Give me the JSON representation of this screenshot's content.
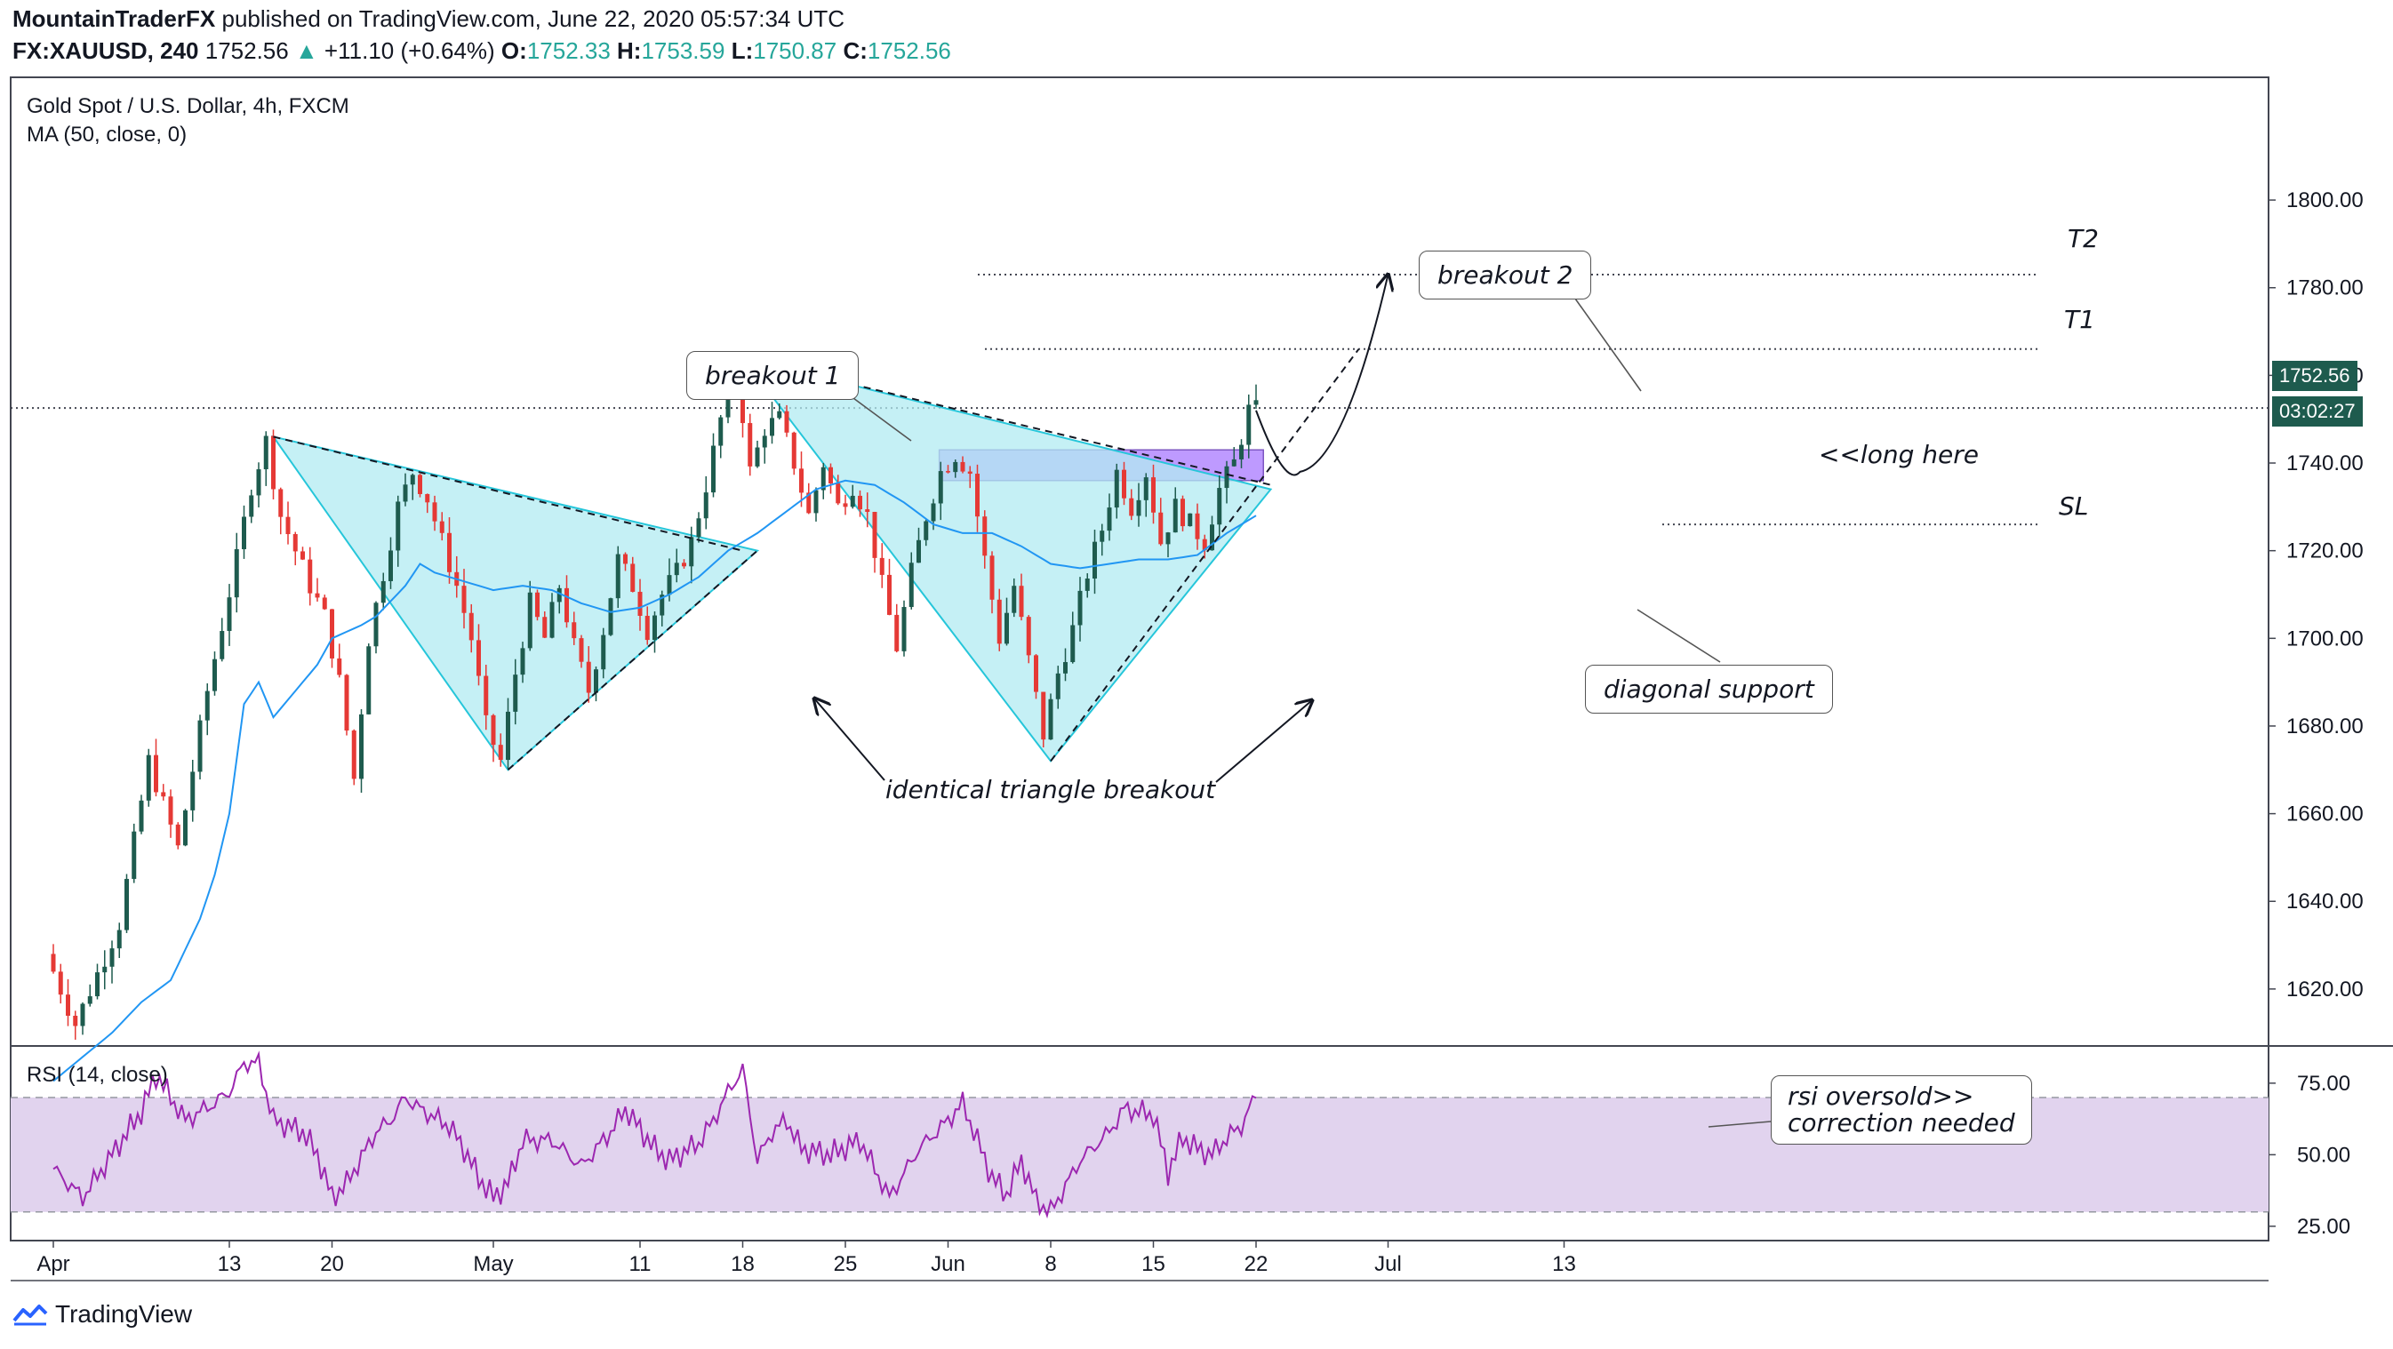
{
  "header": {
    "publisher": "MountainTraderFX",
    "published_text": "published on TradingView.com, June 22, 2020 05:57:34 UTC",
    "symbol": "FX:XAUUSD, 240",
    "last": "1752.56",
    "change": "+11.10 (+0.64%)",
    "o_label": "O:",
    "o_value": "1752.33",
    "h_label": "H:",
    "h_value": "1753.59",
    "l_label": "L:",
    "l_value": "1750.87",
    "c_label": "C:",
    "c_value": "1752.56"
  },
  "legend": {
    "instrument": "Gold Spot / U.S. Dollar, 4h, FXCM",
    "ma": "MA (50, close, 0)",
    "rsi": "RSI (14, close)"
  },
  "price_tag": "1752.56",
  "time_tag": "03:02:27",
  "brand": "TradingView",
  "annotations": {
    "breakout1": "breakout 1",
    "breakout2": "breakout 2",
    "long_here": "<<long here",
    "t1": "T1",
    "t2": "T2",
    "sl": "SL",
    "diagonal": "diagonal support",
    "identical": "identical triangle breakout",
    "rsi_note_1": "rsi oversold>>",
    "rsi_note_2": "correction  needed"
  },
  "colors": {
    "bull": "#1e5b4e",
    "bear": "#e53935",
    "ma": "#2196f3",
    "triangle_fill": "#b2ebf2",
    "triangle_edge": "#26c6da",
    "zone_fill": "#b388ff",
    "rsi_line": "#9c27b0",
    "rsi_band": "#e1d3ee"
  },
  "chart_data": {
    "type": "candlestick",
    "price_axis": {
      "ticks": [
        "1800.00",
        "1780.00",
        "1760.00",
        "1740.00",
        "1720.00",
        "1700.00",
        "1680.00",
        "1660.00",
        "1640.00",
        "1620.00"
      ],
      "range": [
        1607,
        1828
      ]
    },
    "rsi_axis": {
      "ticks": [
        "75.00",
        "50.00",
        "25.00"
      ],
      "range": [
        20,
        88
      ],
      "band": [
        30,
        70
      ]
    },
    "time_axis": {
      "labels": [
        "Apr",
        "13",
        "20",
        "May",
        "11",
        "18",
        "25",
        "Jun",
        "8",
        "15",
        "22",
        "Jul",
        "13"
      ],
      "label_days": [
        0,
        12,
        19,
        30,
        40,
        47,
        54,
        61,
        68,
        75,
        82,
        91,
        103
      ]
    },
    "levels": {
      "T2": 1783,
      "T1": 1766,
      "current": 1752.56,
      "SL": 1726
    },
    "long_zone": [
      1736,
      1743
    ],
    "price_path": [
      [
        0,
        1628
      ],
      [
        2,
        1612
      ],
      [
        5,
        1635
      ],
      [
        7,
        1672
      ],
      [
        9,
        1652
      ],
      [
        11,
        1688
      ],
      [
        13,
        1718
      ],
      [
        14,
        1735
      ],
      [
        15,
        1745
      ],
      [
        16,
        1728
      ],
      [
        17,
        1720
      ],
      [
        18,
        1712
      ],
      [
        19,
        1705
      ],
      [
        20,
        1690
      ],
      [
        21,
        1668
      ],
      [
        22,
        1700
      ],
      [
        23,
        1715
      ],
      [
        24,
        1730
      ],
      [
        25,
        1738
      ],
      [
        26,
        1732
      ],
      [
        27,
        1722
      ],
      [
        28,
        1712
      ],
      [
        29,
        1700
      ],
      [
        30,
        1680
      ],
      [
        31,
        1672
      ],
      [
        32,
        1692
      ],
      [
        33,
        1708
      ],
      [
        34,
        1700
      ],
      [
        35,
        1712
      ],
      [
        36,
        1698
      ],
      [
        37,
        1688
      ],
      [
        38,
        1702
      ],
      [
        39,
        1718
      ],
      [
        40,
        1712
      ],
      [
        41,
        1702
      ],
      [
        42,
        1710
      ],
      [
        43,
        1715
      ],
      [
        44,
        1722
      ],
      [
        45,
        1735
      ],
      [
        46,
        1750
      ],
      [
        47,
        1764
      ],
      [
        48,
        1738
      ],
      [
        49,
        1748
      ],
      [
        50,
        1750
      ],
      [
        51,
        1740
      ],
      [
        52,
        1728
      ],
      [
        53,
        1740
      ],
      [
        54,
        1730
      ],
      [
        55,
        1735
      ],
      [
        56,
        1728
      ],
      [
        57,
        1712
      ],
      [
        58,
        1698
      ],
      [
        59,
        1715
      ],
      [
        60,
        1728
      ],
      [
        61,
        1738
      ],
      [
        62,
        1742
      ],
      [
        63,
        1738
      ],
      [
        64,
        1718
      ],
      [
        65,
        1700
      ],
      [
        66,
        1712
      ],
      [
        67,
        1695
      ],
      [
        68,
        1678
      ],
      [
        69,
        1692
      ],
      [
        70,
        1702
      ],
      [
        71,
        1715
      ],
      [
        72,
        1725
      ],
      [
        73,
        1738
      ],
      [
        74,
        1730
      ],
      [
        75,
        1738
      ],
      [
        76,
        1722
      ],
      [
        77,
        1730
      ],
      [
        78,
        1726
      ],
      [
        79,
        1722
      ],
      [
        80,
        1734
      ],
      [
        81,
        1740
      ],
      [
        82,
        1752
      ]
    ],
    "ma_path": [
      [
        0,
        1599
      ],
      [
        4,
        1610
      ],
      [
        6,
        1617
      ],
      [
        8,
        1622
      ],
      [
        10,
        1636
      ],
      [
        11,
        1646
      ],
      [
        12,
        1660
      ],
      [
        13,
        1685
      ],
      [
        14,
        1690
      ],
      [
        15,
        1682
      ],
      [
        16,
        1686
      ],
      [
        17,
        1690
      ],
      [
        18,
        1694
      ],
      [
        19,
        1700
      ],
      [
        21,
        1703
      ],
      [
        22,
        1705
      ],
      [
        24,
        1712
      ],
      [
        25,
        1717
      ],
      [
        26,
        1715
      ],
      [
        28,
        1713
      ],
      [
        30,
        1711
      ],
      [
        32,
        1712
      ],
      [
        34,
        1711
      ],
      [
        36,
        1708
      ],
      [
        38,
        1706
      ],
      [
        40,
        1707
      ],
      [
        42,
        1710
      ],
      [
        44,
        1714
      ],
      [
        46,
        1720
      ],
      [
        48,
        1724
      ],
      [
        50,
        1729
      ],
      [
        52,
        1734
      ],
      [
        54,
        1736
      ],
      [
        56,
        1735
      ],
      [
        58,
        1731
      ],
      [
        60,
        1726
      ],
      [
        62,
        1724
      ],
      [
        64,
        1724
      ],
      [
        66,
        1721
      ],
      [
        68,
        1717
      ],
      [
        70,
        1716
      ],
      [
        72,
        1717
      ],
      [
        74,
        1718
      ],
      [
        76,
        1718
      ],
      [
        78,
        1719
      ],
      [
        80,
        1724
      ],
      [
        82,
        1728
      ]
    ],
    "rsi_path": [
      [
        0,
        45
      ],
      [
        2,
        35
      ],
      [
        4,
        50
      ],
      [
        6,
        65
      ],
      [
        7,
        78
      ],
      [
        9,
        62
      ],
      [
        11,
        68
      ],
      [
        12,
        72
      ],
      [
        13,
        82
      ],
      [
        14,
        82
      ],
      [
        15,
        62
      ],
      [
        17,
        58
      ],
      [
        18,
        50
      ],
      [
        19,
        35
      ],
      [
        20,
        40
      ],
      [
        22,
        58
      ],
      [
        23,
        62
      ],
      [
        24,
        70
      ],
      [
        25,
        66
      ],
      [
        27,
        60
      ],
      [
        28,
        52
      ],
      [
        29,
        42
      ],
      [
        30,
        35
      ],
      [
        31,
        40
      ],
      [
        32,
        55
      ],
      [
        34,
        55
      ],
      [
        36,
        46
      ],
      [
        38,
        58
      ],
      [
        39,
        66
      ],
      [
        41,
        52
      ],
      [
        42,
        48
      ],
      [
        44,
        54
      ],
      [
        45,
        62
      ],
      [
        46,
        72
      ],
      [
        47,
        80
      ],
      [
        48,
        48
      ],
      [
        49,
        58
      ],
      [
        50,
        62
      ],
      [
        51,
        52
      ],
      [
        53,
        50
      ],
      [
        55,
        55
      ],
      [
        56,
        45
      ],
      [
        57,
        35
      ],
      [
        59,
        52
      ],
      [
        61,
        62
      ],
      [
        62,
        68
      ],
      [
        63,
        55
      ],
      [
        64,
        42
      ],
      [
        65,
        36
      ],
      [
        66,
        48
      ],
      [
        67,
        34
      ],
      [
        68,
        30
      ],
      [
        70,
        48
      ],
      [
        72,
        58
      ],
      [
        73,
        66
      ],
      [
        75,
        64
      ],
      [
        76,
        44
      ],
      [
        77,
        56
      ],
      [
        78,
        52
      ],
      [
        79,
        50
      ],
      [
        80,
        56
      ],
      [
        81,
        60
      ],
      [
        82,
        71
      ]
    ],
    "triangles": [
      [
        [
          15,
          1746
        ],
        [
          31,
          1670
        ],
        [
          48,
          1720
        ]
      ],
      [
        [
          47,
          1764
        ],
        [
          68,
          1672
        ],
        [
          83,
          1734
        ]
      ]
    ],
    "trendlines_dashed": [
      [
        [
          15,
          1746
        ],
        [
          47,
          1720
        ]
      ],
      [
        [
          31,
          1670
        ],
        [
          48,
          1720
        ]
      ],
      [
        [
          47,
          1764
        ],
        [
          83,
          1735
        ]
      ],
      [
        [
          68,
          1672
        ],
        [
          89,
          1766
        ]
      ]
    ],
    "projection": [
      [
        82,
        1752
      ],
      [
        85,
        1738
      ],
      [
        87,
        1745
      ],
      [
        89,
        1765
      ],
      [
        91,
        1783
      ]
    ]
  }
}
